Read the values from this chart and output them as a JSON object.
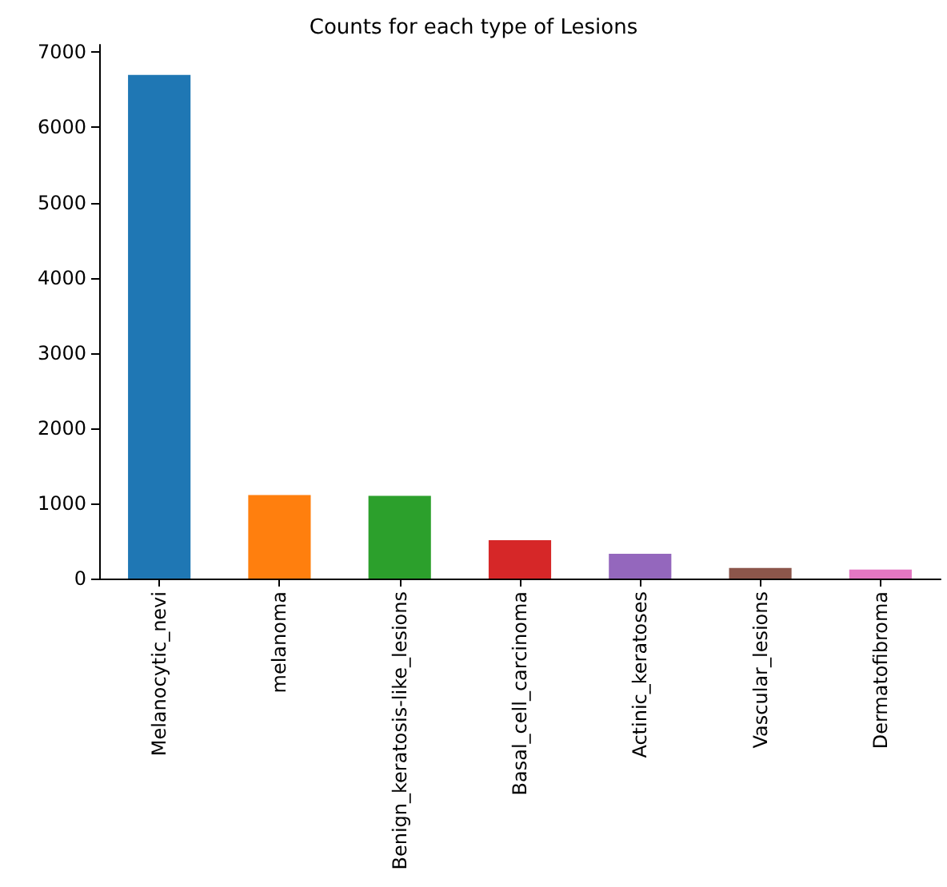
{
  "chart_data": {
    "type": "bar",
    "title": "Counts for each type of Lesions",
    "categories": [
      "Melanocytic_nevi",
      "melanoma",
      "Benign_keratosis-like_lesions",
      "Basal_cell_carcinoma",
      "Actinic_keratoses",
      "Vascular_lesions",
      "Dermatofibroma"
    ],
    "values": [
      6700,
      1110,
      1100,
      510,
      330,
      140,
      120
    ],
    "colors": [
      "#1f77b4",
      "#ff7f0e",
      "#2ca02c",
      "#d62728",
      "#9467bd",
      "#8c564b",
      "#e377c2"
    ],
    "ylim": [
      0,
      7100
    ],
    "yticks": [
      0,
      1000,
      2000,
      3000,
      4000,
      5000,
      6000,
      7000
    ],
    "grid": false
  }
}
